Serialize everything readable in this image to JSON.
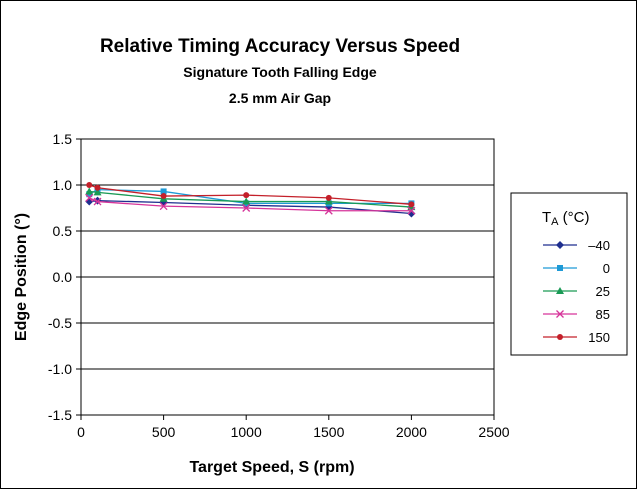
{
  "chart_data": {
    "type": "line",
    "title": "Relative Timing Accuracy Versus Speed",
    "subtitle": "Signature Tooth Falling Edge",
    "subtitle2": "2.5 mm Air Gap",
    "xlabel": "Target Speed, S (rpm)",
    "ylabel": "Edge Position (°)",
    "xlim": [
      0,
      2500
    ],
    "ylim": [
      -1.5,
      1.5
    ],
    "xticks": [
      "0",
      "500",
      "1000",
      "1500",
      "2000",
      "2500"
    ],
    "yticks": [
      "1.5",
      "1.0",
      "0.5",
      "0.0",
      "-0.5",
      "-1.0",
      "-1.5"
    ],
    "grid": true,
    "legend": {
      "placement": "right",
      "title_main": "T",
      "title_sub": "A",
      "title_unit": " (°C)"
    },
    "x": [
      50,
      100,
      500,
      1000,
      1500,
      2000
    ],
    "series": [
      {
        "name": "–40",
        "color": "#1f2f8f",
        "marker": "diamond",
        "values": [
          0.82,
          0.83,
          0.81,
          0.78,
          0.76,
          0.69
        ]
      },
      {
        "name": "0",
        "color": "#1e9ad6",
        "marker": "square",
        "values": [
          0.9,
          0.95,
          0.93,
          0.8,
          0.8,
          0.8
        ]
      },
      {
        "name": "25",
        "color": "#1a9a55",
        "marker": "triangle",
        "values": [
          0.93,
          0.92,
          0.85,
          0.82,
          0.82,
          0.76
        ]
      },
      {
        "name": "85",
        "color": "#d6349a",
        "marker": "x",
        "values": [
          0.86,
          0.82,
          0.77,
          0.75,
          0.72,
          0.72
        ]
      },
      {
        "name": "150",
        "color": "#c4202a",
        "marker": "circle",
        "values": [
          1.0,
          0.97,
          0.88,
          0.89,
          0.86,
          0.79
        ]
      }
    ]
  }
}
